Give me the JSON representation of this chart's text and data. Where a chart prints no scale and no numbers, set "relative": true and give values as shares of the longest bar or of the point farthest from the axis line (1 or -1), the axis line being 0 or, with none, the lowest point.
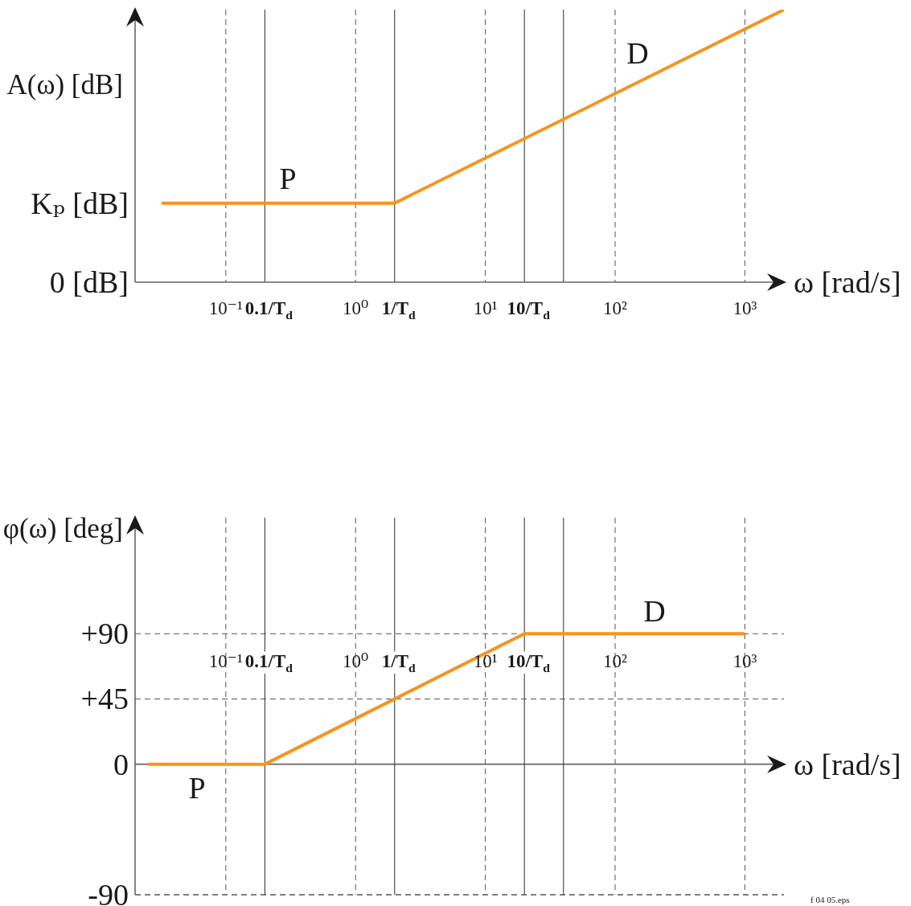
{
  "chart_data": [
    {
      "type": "line",
      "relative": true,
      "ylabel": "A(ω) [dB]",
      "xlabel": "ω [rad/s]",
      "x": [
        0.032,
        2,
        2000
      ],
      "values": [
        0.29,
        0.29,
        1
      ],
      "color": "#f7941d",
      "log": "x",
      "xlim": [
        0.02,
        2000
      ],
      "xticks": [
        {
          "value": 0.1,
          "label": "10⁻¹"
        },
        {
          "value": 1,
          "label": "10⁰"
        },
        {
          "value": 10,
          "label": "10¹"
        },
        {
          "value": 100,
          "label": "10²"
        },
        {
          "value": 1000,
          "label": "10³"
        }
      ],
      "grid": "x",
      "ref_lines": [
        {
          "axis": "x",
          "value": 0.2,
          "label": "0.1/T$_{d}$"
        },
        {
          "axis": "x",
          "value": 2,
          "label": "1/T$_{d}$"
        },
        {
          "axis": "x",
          "value": 20,
          "label": "10/T$_{d}$"
        },
        {
          "axis": "x",
          "value": 40
        }
      ],
      "annotations": [
        "Kₚ [dB]",
        "0 [dB]",
        "P",
        "D"
      ]
    },
    {
      "type": "line",
      "ylabel": "φ(ω) [deg]",
      "xlabel": "ω [rad/s]",
      "x": [
        0.025,
        0.2,
        20,
        1000
      ],
      "values": [
        0,
        0,
        90,
        90
      ],
      "color": "#f7941d",
      "log": "x",
      "xlim": [
        0.02,
        2000
      ],
      "ylim": [
        -90,
        170
      ],
      "xticks": [
        {
          "value": 0.1,
          "label": "10⁻¹"
        },
        {
          "value": 1,
          "label": "10⁰"
        },
        {
          "value": 10,
          "label": "10¹"
        },
        {
          "value": 100,
          "label": "10²"
        },
        {
          "value": 1000,
          "label": "10³"
        }
      ],
      "yticks": [
        -90,
        0,
        {
          "value": 45,
          "label": "+45"
        },
        {
          "value": 90,
          "label": "+90"
        }
      ],
      "grid": true,
      "ref_lines": [
        {
          "axis": "x",
          "value": 0.2,
          "label": "0.1/T$_{d}$"
        },
        {
          "axis": "x",
          "value": 2,
          "label": "1/T$_{d}$"
        },
        {
          "axis": "x",
          "value": 20,
          "label": "10/T$_{d}$"
        },
        {
          "axis": "x",
          "value": 40
        }
      ],
      "annotations": [
        "P",
        "D",
        "f 04 05.eps"
      ]
    }
  ]
}
